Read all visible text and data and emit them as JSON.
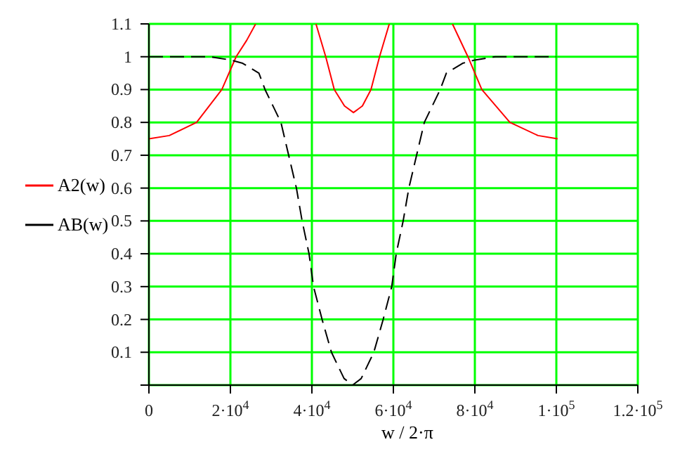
{
  "chart_data": {
    "type": "line",
    "xlabel": "w / 2·π",
    "legend": "left",
    "grid": true,
    "xlim": [
      0,
      120000
    ],
    "xticks": [
      0,
      {
        "value": 20000,
        "label": "2·10$^{4}$"
      },
      {
        "value": 40000,
        "label": "4·10$^{4}$"
      },
      {
        "value": 60000,
        "label": "6·10$^{4}$"
      },
      {
        "value": 80000,
        "label": "8·10$^{4}$"
      },
      {
        "value": 100000,
        "label": "1·10$^{5}$"
      },
      {
        "value": 120000,
        "label": "1.2·10$^{5}$"
      }
    ],
    "ylim": [
      0,
      1.1
    ],
    "yticks": [
      {
        "value": 0,
        "label": null
      },
      0.1,
      0.2,
      0.3,
      0.4,
      0.5,
      0.6,
      0.7,
      0.8,
      0.9,
      1,
      1.1
    ],
    "series": [
      {
        "name": "A2(w)",
        "color": "#ff0000",
        "line_style": "solid",
        "x": [
          0,
          5000,
          11700,
          17900,
          21400,
          24000,
          26200,
          30000,
          41000,
          43400,
          45500,
          48000,
          50200,
          52400,
          54500,
          56600,
          59000,
          70000,
          74500,
          78300,
          81700,
          88600,
          95500,
          100300
        ],
        "values": [
          0.75,
          0.76,
          0.8,
          0.9,
          1.0,
          1.05,
          1.1,
          null,
          1.1,
          1.0,
          0.9,
          0.85,
          0.83,
          0.85,
          0.9,
          1.0,
          1.1,
          null,
          1.1,
          1.0,
          0.9,
          0.8,
          0.76,
          0.75
        ]
      },
      {
        "name": "AB(w)",
        "color": "#000000",
        "line_style": "dashed",
        "x": [
          0,
          10000,
          15000,
          20000,
          23000,
          27000,
          28500,
          32400,
          36200,
          37600,
          39300,
          40400,
          42500,
          44800,
          47900,
          50000,
          52100,
          55200,
          57500,
          59600,
          60700,
          62400,
          63800,
          67600,
          71500,
          73000,
          77000,
          80000,
          85000,
          90000,
          100000
        ],
        "values": [
          1,
          1,
          1,
          0.99,
          0.98,
          0.95,
          0.9,
          0.8,
          0.6,
          0.5,
          0.4,
          0.3,
          0.2,
          0.1,
          0.02,
          0,
          0.02,
          0.1,
          0.2,
          0.3,
          0.4,
          0.5,
          0.6,
          0.8,
          0.9,
          0.95,
          0.98,
          0.99,
          1,
          1,
          1
        ]
      }
    ]
  }
}
